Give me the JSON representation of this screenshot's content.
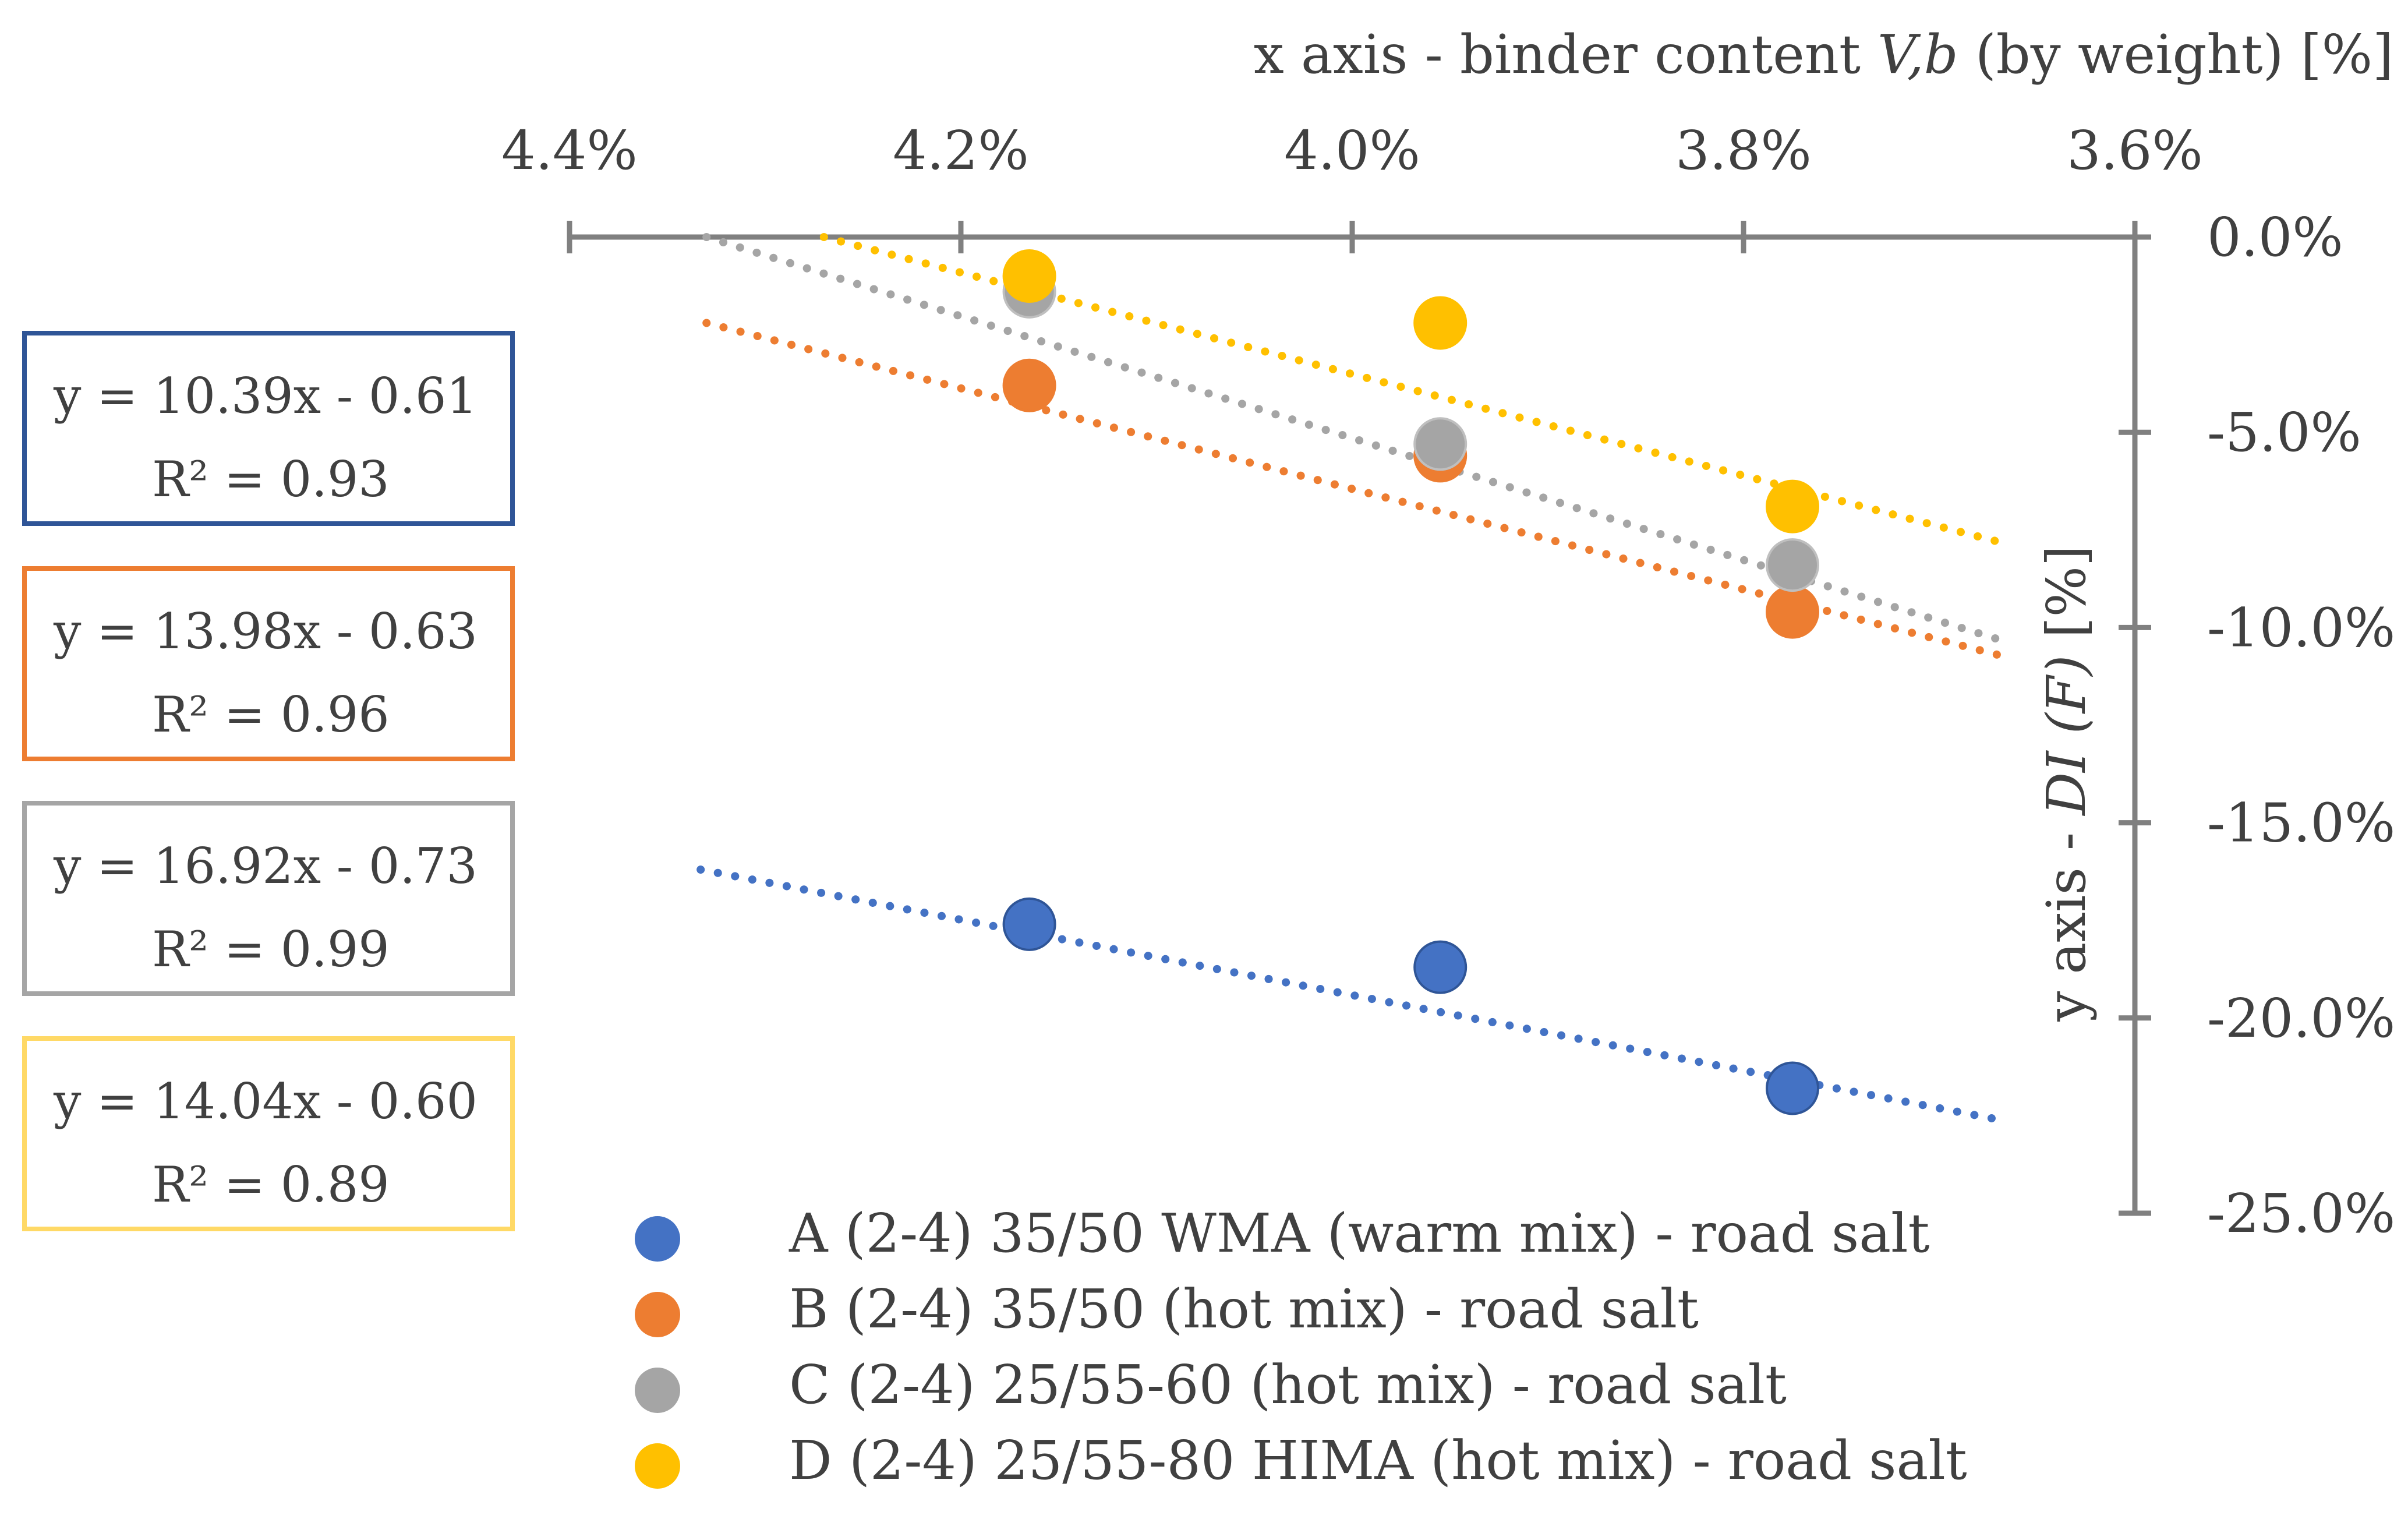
{
  "chart_data": {
    "type": "scatter",
    "x_axis": {
      "title_prefix": "x axis - binder content ",
      "title_var": "V,b",
      "title_suffix": " (by weight) [%]",
      "range": [
        4.4,
        3.6
      ],
      "reversed": true,
      "ticks": [
        4.4,
        4.2,
        4.0,
        3.8,
        3.6
      ],
      "tick_labels": [
        "4.4%",
        "4.2%",
        "4.0%",
        "3.8%",
        "3.6%"
      ],
      "position": "top"
    },
    "y_axis": {
      "title_prefix": "y axis - ",
      "title_var": "DI (F)",
      "title_suffix": " [%]",
      "range": [
        -25.0,
        0.0
      ],
      "ticks": [
        0,
        -5,
        -10,
        -15,
        -20,
        -25
      ],
      "tick_labels": [
        "0.0%",
        "-5.0%",
        "-10.0%",
        "-15.0%",
        "-20.0%",
        "-25.0%"
      ],
      "position": "right"
    },
    "series": [
      {
        "name": "A (2-4) 35/50 WMA (warm mix) - road salt",
        "color": "#4472C4",
        "border": "#2F5597",
        "x": [
          4.165,
          3.955,
          3.775
        ],
        "y": [
          -17.6,
          -18.7,
          -21.8
        ],
        "trendline": {
          "equation": "y = 10.39x - 0.61",
          "r2": "R² = 0.93",
          "x_range": [
            4.333,
            3.67
          ],
          "y_range": [
            -16.2,
            -22.6
          ]
        }
      },
      {
        "name": "B (2-4) 35/50 (hot mix) - road salt",
        "color": "#ED7D31",
        "border": "#ED7D31",
        "x": [
          4.165,
          3.955,
          3.775
        ],
        "y": [
          -3.8,
          -5.6,
          -9.6
        ],
        "trendline": {
          "equation": "y = 13.98x - 0.63",
          "r2": "R² = 0.96",
          "x_range": [
            4.33,
            3.67
          ],
          "y_range": [
            -2.2,
            -10.7
          ]
        }
      },
      {
        "name": "C (2-4) 25/55-60 (hot mix) - road salt",
        "color": "#A5A5A5",
        "border": "#BFBFBF",
        "x": [
          4.165,
          3.955,
          3.775
        ],
        "y": [
          -1.4,
          -5.3,
          -8.4
        ],
        "trendline": {
          "equation": "y = 16.92x - 0.73",
          "r2": "R² = 0.99",
          "x_range": [
            4.33,
            3.67
          ],
          "y_range": [
            0.0,
            -10.3
          ]
        }
      },
      {
        "name": "D (2-4) 25/55-80 HIMA (hot mix) - road salt",
        "color": "#FFC000",
        "border": "#FFC000",
        "x": [
          4.165,
          3.955,
          3.775
        ],
        "y": [
          -1.0,
          -2.2,
          -6.9
        ],
        "trendline": {
          "equation": "y = 14.04x - 0.60",
          "r2": "R² = 0.89",
          "x_range": [
            4.27,
            3.67
          ],
          "y_range": [
            0.0,
            -7.8
          ]
        }
      }
    ],
    "trendline_style": "dotted",
    "legend_position": "bottom",
    "equation_boxes_position": "left",
    "equation_box_colors": [
      "#2F5597",
      "#ED7D31",
      "#A5A5A5",
      "#FFD966"
    ]
  }
}
